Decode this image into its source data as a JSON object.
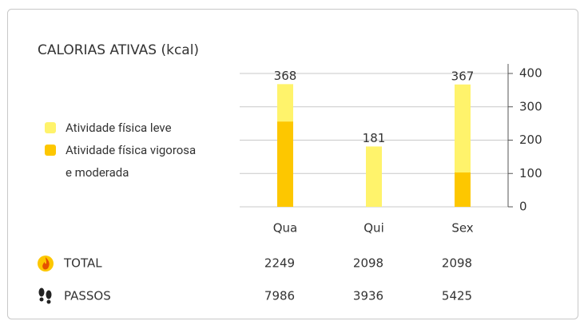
{
  "chart_data": {
    "type": "stacked_bar",
    "title": "CALORIAS ATIVAS (kcal)",
    "categories": [
      "Qua",
      "Qui",
      "Sex"
    ],
    "series": [
      {
        "name": "Atividade física leve",
        "color": "#fff36b",
        "values": [
          112,
          181,
          264
        ]
      },
      {
        "name": "Atividade física vigorosa e moderada",
        "color": "#fdc700",
        "values": [
          256,
          0,
          103
        ]
      }
    ],
    "totals": [
      368,
      181,
      367
    ],
    "ylim": [
      0,
      400
    ],
    "yticks": [
      0,
      100,
      200,
      300,
      400
    ],
    "grid": true,
    "y_axis_side": "right"
  },
  "table": {
    "rows": [
      {
        "label": "TOTAL",
        "values": [
          2249,
          2098,
          2098
        ]
      },
      {
        "label": "PASSOS",
        "values": [
          7986,
          3936,
          5425
        ]
      }
    ]
  }
}
